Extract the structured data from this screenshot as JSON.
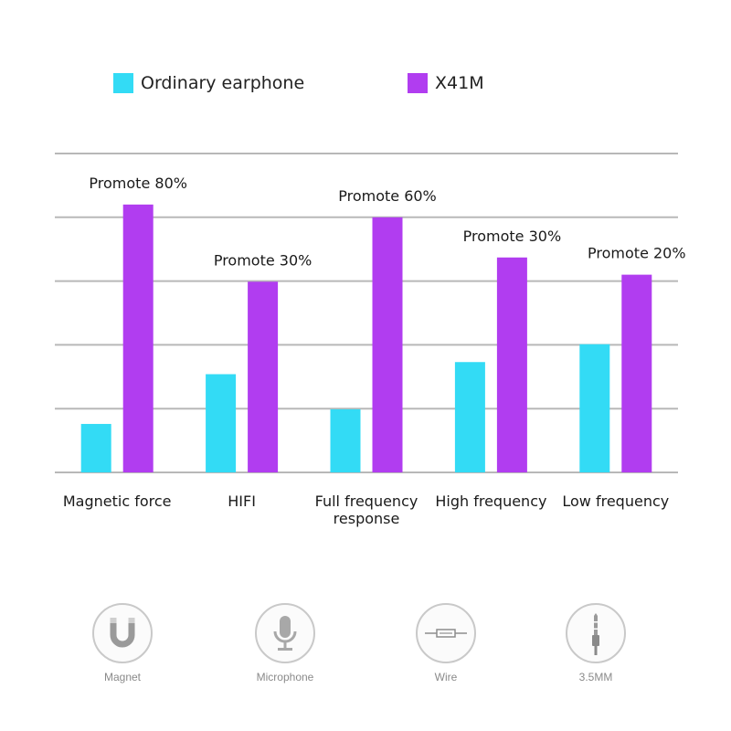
{
  "colors": {
    "ordinary": "#33dbf5",
    "x41m": "#b13df0",
    "grid": "#b8b8b8",
    "axis_text": "#1a1a1a"
  },
  "legend": [
    {
      "label": "Ordinary earphone",
      "color": "#33dbf5"
    },
    {
      "label": "X41M",
      "color": "#b13df0"
    }
  ],
  "chart_data": {
    "type": "bar",
    "categories": [
      "Magnetic force",
      "HIFI",
      "Full frequency response",
      "High frequency",
      "Low frequency"
    ],
    "category_lines": [
      [
        "Magnetic force"
      ],
      [
        "HIFI"
      ],
      [
        "Full frequency",
        "response"
      ],
      [
        "High frequency"
      ],
      [
        "Low frequency"
      ]
    ],
    "series": [
      {
        "name": "Ordinary earphone",
        "color": "#33dbf5",
        "values": [
          0.76,
          1.54,
          0.99,
          1.73,
          2.01
        ]
      },
      {
        "name": "X41M",
        "color": "#b13df0",
        "values": [
          4.2,
          2.99,
          4.0,
          3.37,
          3.1
        ]
      }
    ],
    "annotations": [
      "Promote 80%",
      "Promote 30%",
      "Promote 60%",
      "Promote 30%",
      "Promote 20%"
    ],
    "ylim": [
      0,
      5
    ],
    "grid": true,
    "legend_position": "top"
  },
  "features": [
    {
      "label": "Magnet",
      "icon": "magnet-icon"
    },
    {
      "label": "Microphone",
      "icon": "microphone-icon"
    },
    {
      "label": "Wire",
      "icon": "wire-icon"
    },
    {
      "label": "3.5MM",
      "icon": "audio-jack-icon"
    }
  ]
}
